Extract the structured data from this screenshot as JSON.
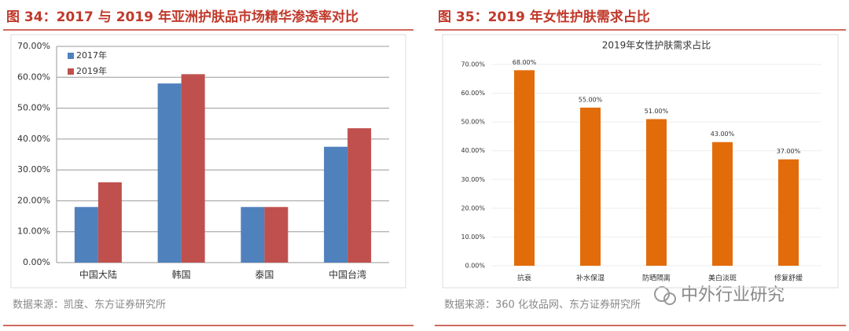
{
  "chart_data": [
    {
      "type": "bar",
      "heading": "图 34：2017 与 2019 年亚洲护肤品市场精华渗透率对比",
      "categories": [
        "中国大陆",
        "韩国",
        "泰国",
        "中国台湾"
      ],
      "series": [
        {
          "name": "2017年",
          "color": "#4f81bd",
          "values": [
            18,
            58,
            18,
            37.5
          ]
        },
        {
          "name": "2019年",
          "color": "#c0504d",
          "values": [
            26,
            61,
            18,
            43.5
          ]
        }
      ],
      "ylim": [
        0,
        70
      ],
      "yticks": [
        {
          "value": 0,
          "label": "0.00%"
        },
        {
          "value": 10,
          "label": "10.00%"
        },
        {
          "value": 20,
          "label": "20.00%"
        },
        {
          "value": 30,
          "label": "30.00%"
        },
        {
          "value": 40,
          "label": "40.00%"
        },
        {
          "value": 50,
          "label": "50.00%"
        },
        {
          "value": 60,
          "label": "60.00%"
        },
        {
          "value": 70,
          "label": "70.00%"
        }
      ],
      "grid": true,
      "legend": "top-left",
      "source": "数据来源：凯度、东方证券研究所"
    },
    {
      "type": "bar",
      "heading": "图 35：2019 年女性护肤需求占比",
      "title": "2019年女性护肤需求占比",
      "categories": [
        "抗衰",
        "补水保湿",
        "防晒隔离",
        "美白淡斑",
        "修复舒缓"
      ],
      "values": [
        68,
        55,
        51,
        43,
        37
      ],
      "value_labels": [
        "68.00%",
        "55.00%",
        "51.00%",
        "43.00%",
        "37.00%"
      ],
      "color": "#e36c0a",
      "ylim": [
        0,
        70
      ],
      "yticks": [
        {
          "value": 0,
          "label": "0.00%"
        },
        {
          "value": 10,
          "label": "10.00%"
        },
        {
          "value": 20,
          "label": "20.00%"
        },
        {
          "value": 30,
          "label": "30.00%"
        },
        {
          "value": 40,
          "label": "40.00%"
        },
        {
          "value": 50,
          "label": "50.00%"
        },
        {
          "value": 60,
          "label": "60.00%"
        },
        {
          "value": 70,
          "label": "70.00%"
        }
      ],
      "grid": true,
      "source": "数据来源：360 化妆品网、东方证券研究所"
    }
  ],
  "watermark": "中外行业研究"
}
